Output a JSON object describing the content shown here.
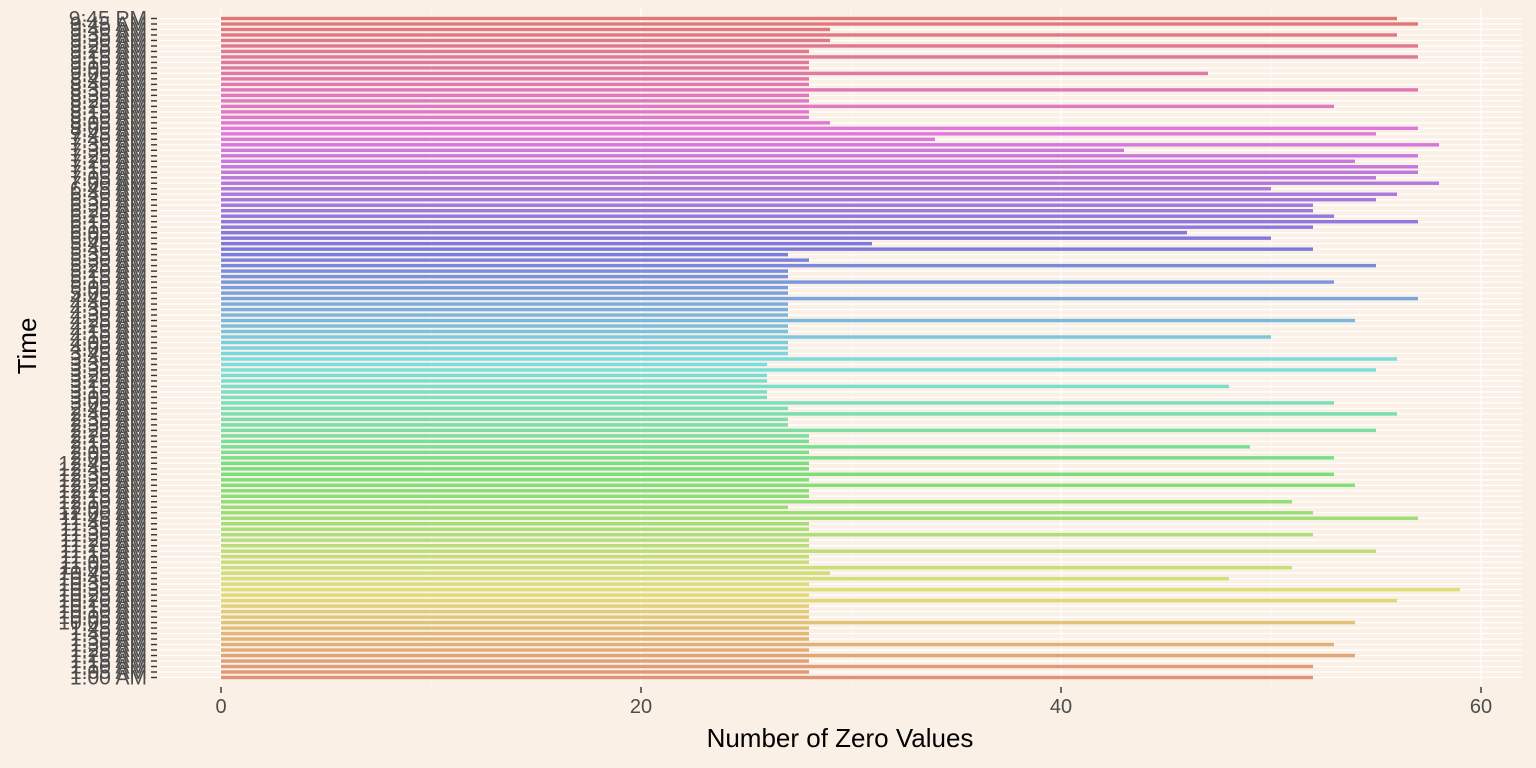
{
  "chart_data": {
    "type": "bar",
    "orientation": "horizontal",
    "xlabel": "Number of Zero Values",
    "ylabel": "Time",
    "xlim": [
      -3.5,
      62
    ],
    "x_ticks": [
      0,
      20,
      40,
      60
    ],
    "grid": true,
    "legend": "none",
    "colors": {
      "background": "#FAF0E6",
      "panel": "#FAF0E6",
      "grid": "#FFFFFF",
      "tick_text": "#4D4D4D",
      "title_text": "#000000"
    },
    "categories": [
      "1:00 AM",
      "1:05 AM",
      "1:10 AM",
      "1:15 AM",
      "1:20 AM",
      "1:25 AM",
      "1:30 AM",
      "1:35 AM",
      "1:40 AM",
      "1:45 AM",
      "10:00 AM",
      "10:05 AM",
      "10:10 AM",
      "10:15 AM",
      "10:20 AM",
      "10:25 AM",
      "10:30 AM",
      "10:35 AM",
      "10:40 AM",
      "10:45 AM",
      "11:00 AM",
      "11:05 AM",
      "11:10 AM",
      "11:15 AM",
      "11:20 AM",
      "11:25 AM",
      "11:30 AM",
      "11:35 AM",
      "11:40 AM",
      "11:45 AM",
      "12:00 AM",
      "12:05 AM",
      "12:10 AM",
      "12:15 AM",
      "12:20 AM",
      "12:25 AM",
      "12:30 AM",
      "12:35 AM",
      "12:40 AM",
      "12:45 AM",
      "2:00 AM",
      "2:05 AM",
      "2:10 AM",
      "2:15 AM",
      "2:20 AM",
      "2:25 AM",
      "2:30 AM",
      "2:35 AM",
      "2:40 AM",
      "2:45 AM",
      "3:00 AM",
      "3:05 AM",
      "3:10 AM",
      "3:15 AM",
      "3:20 AM",
      "3:25 AM",
      "3:30 AM",
      "3:35 AM",
      "3:40 AM",
      "3:45 AM",
      "4:00 AM",
      "4:05 AM",
      "4:10 AM",
      "4:15 AM",
      "4:20 AM",
      "4:25 AM",
      "4:30 AM",
      "4:35 AM",
      "4:40 AM",
      "4:45 AM",
      "5:00 AM",
      "5:05 AM",
      "5:10 AM",
      "5:15 AM",
      "5:20 AM",
      "5:25 AM",
      "5:30 AM",
      "5:35 AM",
      "5:40 AM",
      "5:45 AM",
      "6:00 AM",
      "6:05 AM",
      "6:10 AM",
      "6:15 AM",
      "6:20 AM",
      "6:25 AM",
      "6:30 AM",
      "6:35 AM",
      "6:40 AM",
      "6:45 AM",
      "7:00 AM",
      "7:05 AM",
      "7:10 AM",
      "7:15 AM",
      "7:20 AM",
      "7:25 AM",
      "7:30 AM",
      "7:35 AM",
      "7:40 AM",
      "7:45 AM",
      "8:00 AM",
      "8:05 AM",
      "8:10 AM",
      "8:15 AM",
      "8:20 AM",
      "8:25 AM",
      "8:30 AM",
      "8:35 AM",
      "8:40 AM",
      "8:45 AM",
      "9:00 AM",
      "9:05 AM",
      "9:10 AM",
      "9:15 AM",
      "9:20 AM",
      "9:25 AM",
      "9:30 AM",
      "9:35 AM",
      "9:40 AM",
      "9:45 AM",
      "9:45 PM"
    ],
    "values": [
      52,
      28,
      52,
      28,
      54,
      28,
      53,
      28,
      28,
      28,
      54,
      28,
      28,
      28,
      56,
      28,
      59,
      28,
      48,
      29,
      51,
      28,
      28,
      55,
      28,
      28,
      52,
      28,
      28,
      57,
      52,
      27,
      51,
      28,
      28,
      54,
      28,
      53,
      28,
      28,
      53,
      28,
      49,
      28,
      28,
      55,
      27,
      27,
      56,
      27,
      53,
      26,
      26,
      48,
      26,
      26,
      55,
      26,
      56,
      27,
      27,
      27,
      50,
      27,
      27,
      54,
      27,
      27,
      27,
      57,
      27,
      27,
      53,
      27,
      27,
      55,
      28,
      27,
      52,
      31,
      50,
      46,
      52,
      57,
      53,
      52,
      52,
      55,
      56,
      50,
      58,
      55,
      57,
      57,
      54,
      57,
      43,
      58,
      34,
      55,
      57,
      29,
      28,
      28,
      53,
      28,
      28,
      57,
      28,
      28,
      47,
      28,
      28,
      57,
      28,
      57,
      29,
      56,
      29,
      57,
      56
    ]
  }
}
